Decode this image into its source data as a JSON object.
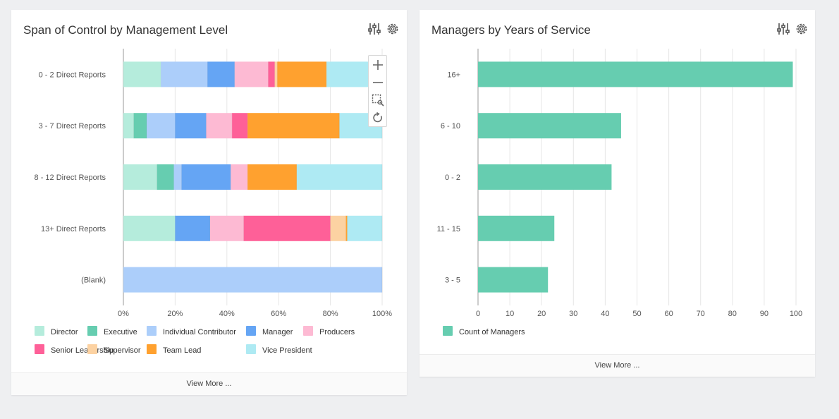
{
  "left_card": {
    "title": "Span of Control by Management Level",
    "footer": "View More ...",
    "zoom_controls": [
      "zoom-in",
      "zoom-out",
      "zoom-select",
      "reset"
    ]
  },
  "right_card": {
    "title": "Managers by Years of Service",
    "footer": "View More ..."
  },
  "chart_data": [
    {
      "type": "bar",
      "orientation": "horizontal",
      "stacked": "percent",
      "title": "Span of Control by Management Level",
      "categories": [
        "0 - 2 Direct Reports",
        "3 - 7 Direct Reports",
        "8 - 12 Direct Reports",
        "13+ Direct Reports",
        "(Blank)"
      ],
      "x_ticks": [
        "0%",
        "20%",
        "40%",
        "60%",
        "80%",
        "100%"
      ],
      "xlim": [
        0,
        100
      ],
      "grid": true,
      "legend_position": "bottom",
      "series": [
        {
          "name": "Director",
          "color": "#b5ecdc",
          "values": [
            14.5,
            4,
            13,
            20,
            0
          ]
        },
        {
          "name": "Executive",
          "color": "#66cdb0",
          "values": [
            0,
            5,
            6.5,
            0,
            0
          ]
        },
        {
          "name": "Individual Contributor",
          "color": "#accefa",
          "values": [
            18,
            11,
            3,
            0,
            100
          ]
        },
        {
          "name": "Manager",
          "color": "#65a5f4",
          "values": [
            10.5,
            12,
            19,
            13.5,
            0
          ]
        },
        {
          "name": "Producers",
          "color": "#fdbad3",
          "values": [
            13,
            10,
            6.5,
            13,
            0
          ]
        },
        {
          "name": "Senior Leadership",
          "color": "#fe6098",
          "values": [
            2.5,
            6,
            0,
            33.5,
            0
          ]
        },
        {
          "name": "Supervisor",
          "color": "#fcd2a2",
          "values": [
            1,
            0,
            0,
            6,
            0
          ]
        },
        {
          "name": "Team Lead",
          "color": "#ffa12f",
          "values": [
            19,
            35.5,
            19,
            0.5,
            0
          ]
        },
        {
          "name": "Vice President",
          "color": "#aeeaf3",
          "values": [
            21.5,
            16.5,
            33,
            13.5,
            0
          ]
        }
      ]
    },
    {
      "type": "bar",
      "orientation": "horizontal",
      "title": "Managers by Years of Service",
      "categories": [
        "16+",
        "6 - 10",
        "0 - 2",
        "11 - 15",
        "3 - 5"
      ],
      "x_ticks": [
        "0",
        "10",
        "20",
        "30",
        "40",
        "50",
        "60",
        "70",
        "80",
        "90",
        "100"
      ],
      "xlim": [
        0,
        100
      ],
      "grid": true,
      "legend_position": "bottom",
      "series": [
        {
          "name": "Count of Managers",
          "color": "#66cdb0",
          "values": [
            99,
            45,
            42,
            24,
            22
          ]
        }
      ]
    }
  ]
}
